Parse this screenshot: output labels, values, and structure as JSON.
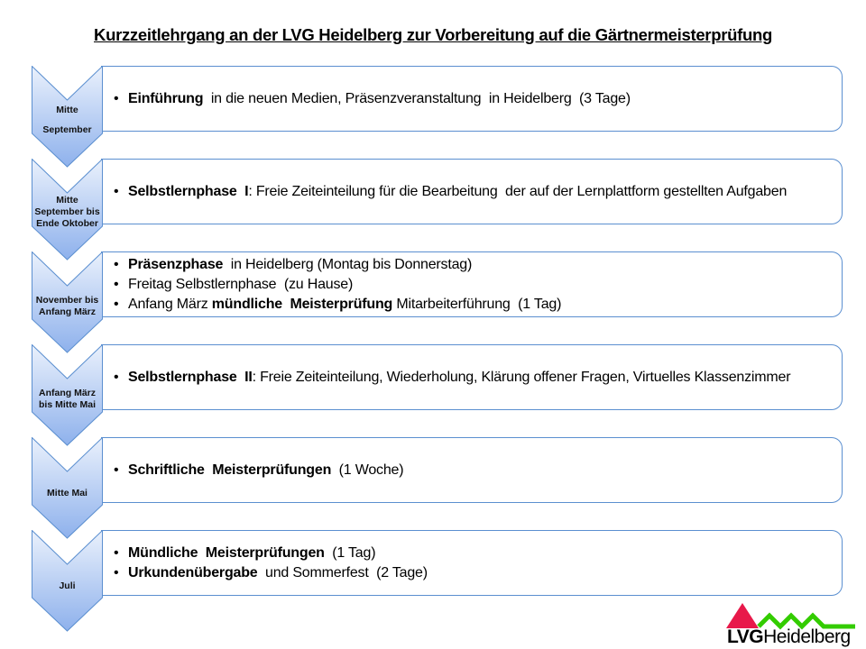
{
  "title": "Kurzzeitlehrgang an der LVG Heidelberg zur Vorbereitung auf die Gärtnermeisterprüfung",
  "colors": {
    "chevron_top": "#eaf1fc",
    "chevron_bottom": "#8eb1ec",
    "border": "#5b8fd0",
    "logo_red": "#e8194a",
    "logo_green": "#33cc00"
  },
  "rows": [
    {
      "label": [
        "Mitte",
        "September"
      ],
      "bullets": [
        [
          {
            "t": "Einführung",
            "b": true
          },
          {
            "t": "  in die neuen Medien, Präsenzveranstaltung  in Heidelberg  (3 Tage)",
            "b": false
          }
        ]
      ]
    },
    {
      "label": [
        "Mitte",
        "September bis",
        "Ende Oktober"
      ],
      "bullets": [
        [
          {
            "t": "Selbstlernphase  I",
            "b": true
          },
          {
            "t": ": Freie Zeiteinteilung für die Bearbeitung  der auf der Lernplattform gestellten Aufgaben",
            "b": false
          }
        ]
      ]
    },
    {
      "label": [
        "November bis",
        "Anfang März"
      ],
      "bullets": [
        [
          {
            "t": "Präsenzphase",
            "b": true
          },
          {
            "t": "  in Heidelberg (Montag bis Donnerstag)",
            "b": false
          }
        ],
        [
          {
            "t": "Freitag Selbstlernphase  (zu Hause)",
            "b": false
          }
        ],
        [
          {
            "t": "Anfang März ",
            "b": false
          },
          {
            "t": "mündliche  Meisterprüfung",
            "b": true
          },
          {
            "t": " Mitarbeiterführung  (1 Tag)",
            "b": false
          }
        ]
      ]
    },
    {
      "label": [
        "Anfang März",
        "bis Mitte Mai"
      ],
      "bullets": [
        [
          {
            "t": "Selbstlernphase  II",
            "b": true
          },
          {
            "t": ": Freie Zeiteinteilung, Wiederholung, Klärung offener Fragen, Virtuelles Klassenzimmer",
            "b": false
          }
        ]
      ]
    },
    {
      "label": [
        "Mitte Mai"
      ],
      "bullets": [
        [
          {
            "t": "Schriftliche  Meisterprüfungen",
            "b": true
          },
          {
            "t": "  (1 Woche)",
            "b": false
          }
        ]
      ]
    },
    {
      "label": [
        "Juli"
      ],
      "bullets": [
        [
          {
            "t": "Mündliche  Meisterprüfungen",
            "b": true
          },
          {
            "t": "  (1 Tag)",
            "b": false
          }
        ],
        [
          {
            "t": "Urkundenübergabe",
            "b": true
          },
          {
            "t": "  und Sommerfest  (2 Tage)",
            "b": false
          }
        ]
      ]
    }
  ],
  "logo": {
    "text_bold": "LVG",
    "text_regular": "Heidelberg"
  }
}
